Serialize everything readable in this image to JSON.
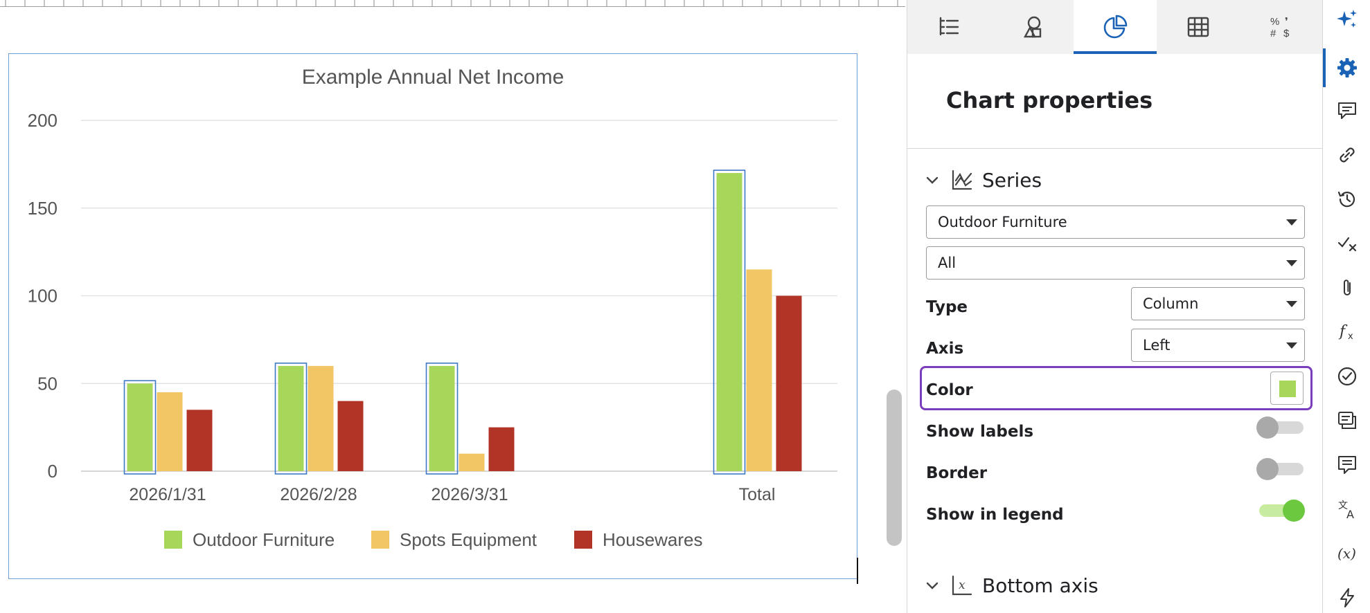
{
  "chart_data": {
    "type": "bar",
    "title": "Example Annual Net Income",
    "categories": [
      "2026/1/31",
      "2026/2/28",
      "2026/3/31",
      "Total"
    ],
    "series": [
      {
        "name": "Outdoor Furniture",
        "values": [
          50,
          60,
          60,
          170
        ],
        "color": "#a6d65a"
      },
      {
        "name": "Spots Equipment",
        "values": [
          45,
          60,
          10,
          115
        ],
        "color": "#f3c665"
      },
      {
        "name": "Housewares",
        "values": [
          35,
          40,
          25,
          100
        ],
        "color": "#b23427"
      }
    ],
    "yticks": [
      "0",
      "50",
      "100",
      "150",
      "200"
    ],
    "ylim": [
      0,
      200
    ],
    "grid": true,
    "legend": "bottom",
    "selected_series": "Outdoor Furniture"
  },
  "panel": {
    "title": "Chart properties",
    "tabs": [
      {
        "name": "setup-tab",
        "icon": "list-settings-icon"
      },
      {
        "name": "insert-shape-tab",
        "icon": "shapes-icon"
      },
      {
        "name": "chart-tab",
        "icon": "pie-chart-icon",
        "active": true
      },
      {
        "name": "table-tab",
        "icon": "table-grid-icon"
      },
      {
        "name": "number-format-tab",
        "icon": "number-format-icon",
        "text": "% ❜ # $"
      }
    ],
    "series_section": {
      "label": "Series",
      "series_select": "Outdoor Furniture",
      "points_select": "All",
      "type_label": "Type",
      "type_value": "Column",
      "axis_label": "Axis",
      "axis_value": "Left",
      "color_label": "Color",
      "color_value": "#a6d65a",
      "show_labels_label": "Show labels",
      "show_labels_on": false,
      "border_label": "Border",
      "border_on": false,
      "show_in_legend_label": "Show in legend",
      "show_in_legend_on": true
    },
    "bottom_axis_section": {
      "label": "Bottom axis"
    }
  },
  "rail": {
    "accent": "#1a62b5",
    "items": [
      "sparkle-ai-icon",
      "settings-gear-icon",
      "comments-icon",
      "link-icon",
      "history-icon",
      "spellcheck-icon",
      "attachment-icon",
      "formula-icon",
      "check-circle-icon",
      "sheet-notes-icon",
      "comment-box-icon",
      "translate-icon",
      "variable-icon",
      "lightning-icon"
    ]
  }
}
